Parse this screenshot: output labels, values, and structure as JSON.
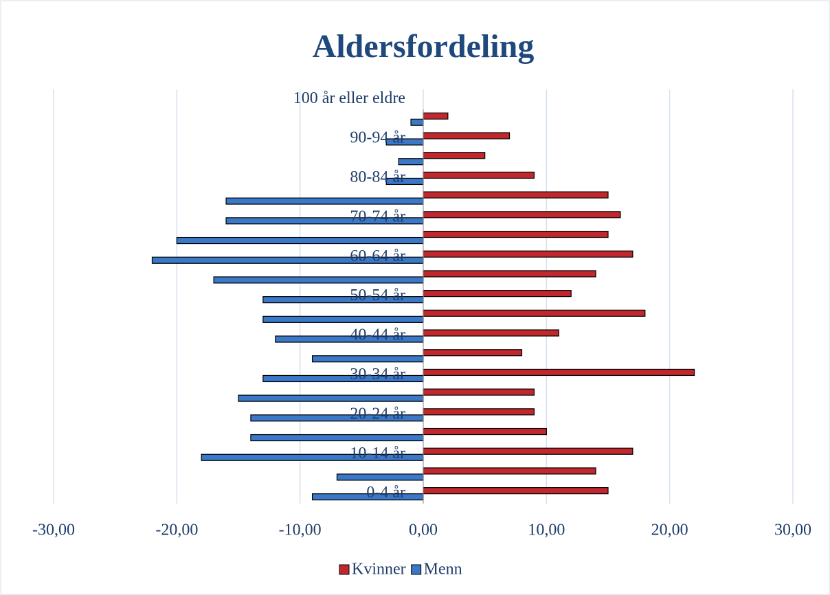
{
  "chart_data": {
    "type": "bar",
    "orientation": "horizontal",
    "title": "Aldersfordeling",
    "categories": [
      "0-4 år",
      null,
      "10-14 år",
      null,
      "20-24 år",
      null,
      "30-34 år",
      null,
      "40-44 år",
      null,
      "50-54 år",
      null,
      "60-64 år",
      null,
      "70-74 år",
      null,
      "80-84 år",
      null,
      "90-94 år",
      null,
      "100 år eller eldre"
    ],
    "series": [
      {
        "name": "Kvinner",
        "color": "#c0282d",
        "values": [
          15,
          14,
          17,
          10,
          9,
          9,
          22,
          8,
          11,
          18,
          12,
          14,
          17,
          15,
          16,
          15,
          9,
          5,
          7,
          2,
          null
        ]
      },
      {
        "name": "Menn",
        "color": "#3b78c8",
        "values": [
          -9,
          -7,
          -18,
          -14,
          -14,
          -15,
          -13,
          -9,
          -12,
          -13,
          -13,
          -17,
          -22,
          -20,
          -16,
          -16,
          -3,
          -2,
          -3,
          -1,
          null
        ]
      }
    ],
    "xlim": [
      -30,
      30
    ],
    "xticks": [
      {
        "value": -30,
        "label": "-30,00"
      },
      {
        "value": -20,
        "label": "-20,00"
      },
      {
        "value": -10,
        "label": "-10,00"
      },
      {
        "value": 0,
        "label": "0,00"
      },
      {
        "value": 10,
        "label": "10,00"
      },
      {
        "value": 20,
        "label": "20,00"
      },
      {
        "value": 30,
        "label": "30,00"
      }
    ],
    "grid": true,
    "legend": "bottom"
  }
}
